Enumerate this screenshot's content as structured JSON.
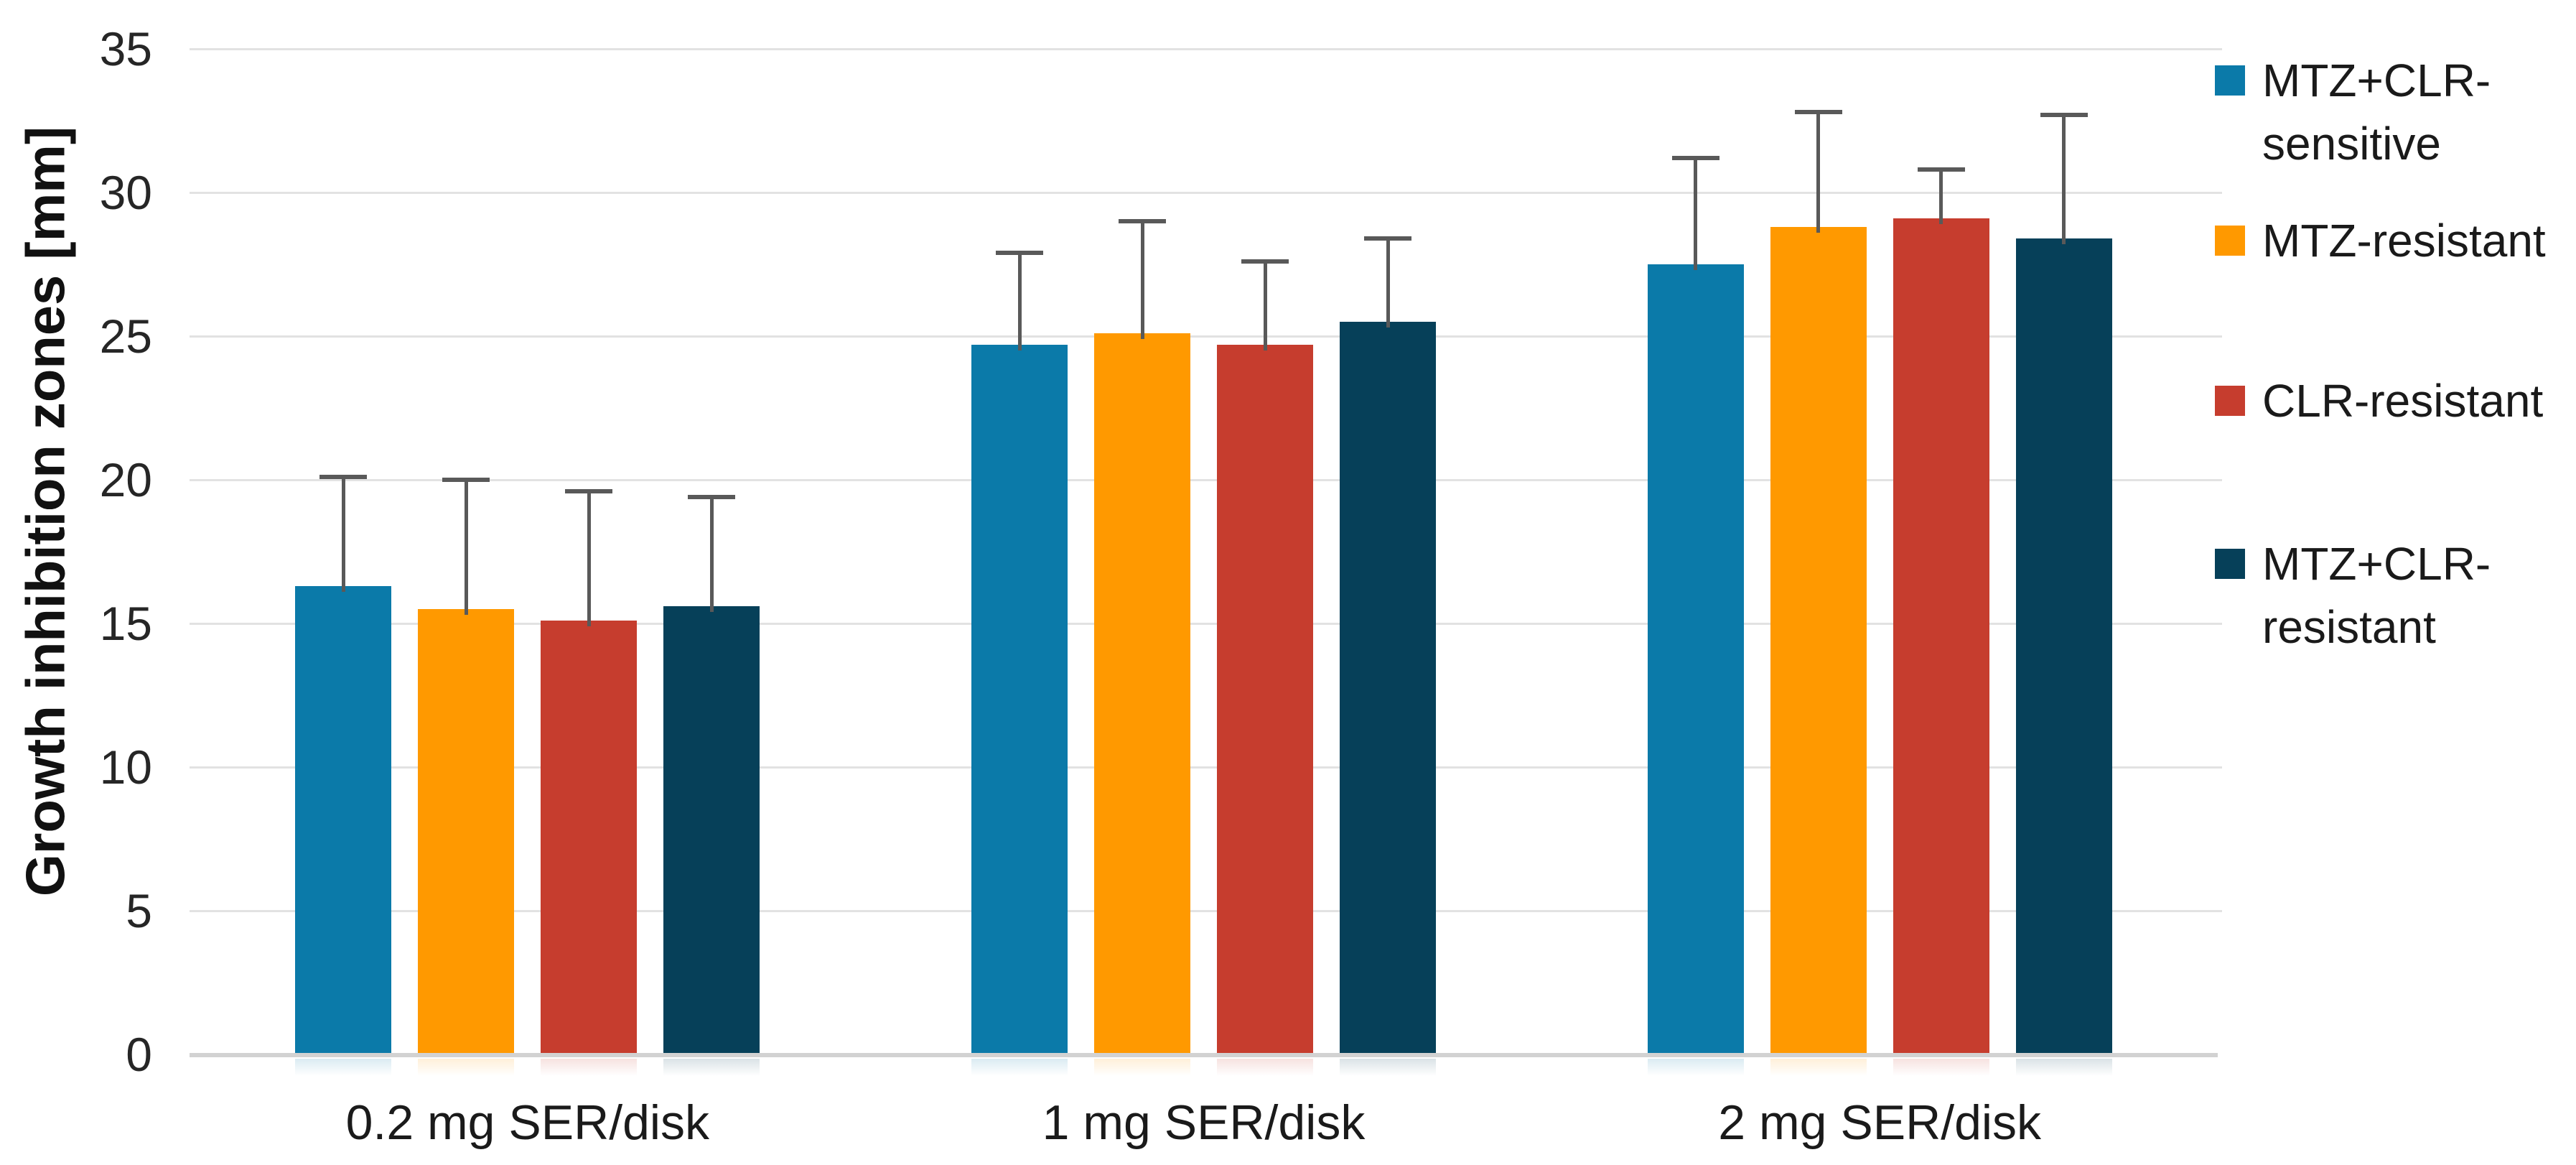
{
  "chart_data": {
    "type": "bar",
    "title": "",
    "ylabel": "Growth inhibition zones [mm]",
    "xlabel": "",
    "ylim": [
      0,
      35
    ],
    "yticks": [
      0,
      5,
      10,
      15,
      20,
      25,
      30,
      35
    ],
    "grid": true,
    "legend_position": "right",
    "categories": [
      "0.2 mg SER/disk",
      "1 mg SER/disk",
      "2 mg SER/disk"
    ],
    "series": [
      {
        "name": "MTZ+CLR-sensitive",
        "legend_lines": [
          "MTZ+CLR-",
          "sensitive"
        ],
        "color": "#0B7AA9",
        "values": [
          16.3,
          24.7,
          27.5
        ],
        "error_up": [
          3.8,
          3.2,
          3.7
        ]
      },
      {
        "name": "MTZ-resistant",
        "legend_lines": [
          "MTZ-resistant"
        ],
        "color": "#FF9900",
        "values": [
          15.5,
          25.1,
          28.8
        ],
        "error_up": [
          4.5,
          3.9,
          4.0
        ]
      },
      {
        "name": "CLR-resistant",
        "legend_lines": [
          "CLR-resistant"
        ],
        "color": "#C63D2E",
        "values": [
          15.1,
          24.7,
          29.1
        ],
        "error_up": [
          4.5,
          2.9,
          1.7
        ]
      },
      {
        "name": "MTZ+CLR-resistant",
        "legend_lines": [
          "MTZ+CLR-",
          "resistant"
        ],
        "color": "#064059",
        "values": [
          15.6,
          25.5,
          28.4
        ],
        "error_up": [
          3.8,
          2.9,
          4.3
        ]
      }
    ],
    "colors": {
      "error_bar": "#595959",
      "gridline": "#e2e2e2",
      "axis_line": "#d2d2d2",
      "text": "#1a1a1a"
    }
  }
}
